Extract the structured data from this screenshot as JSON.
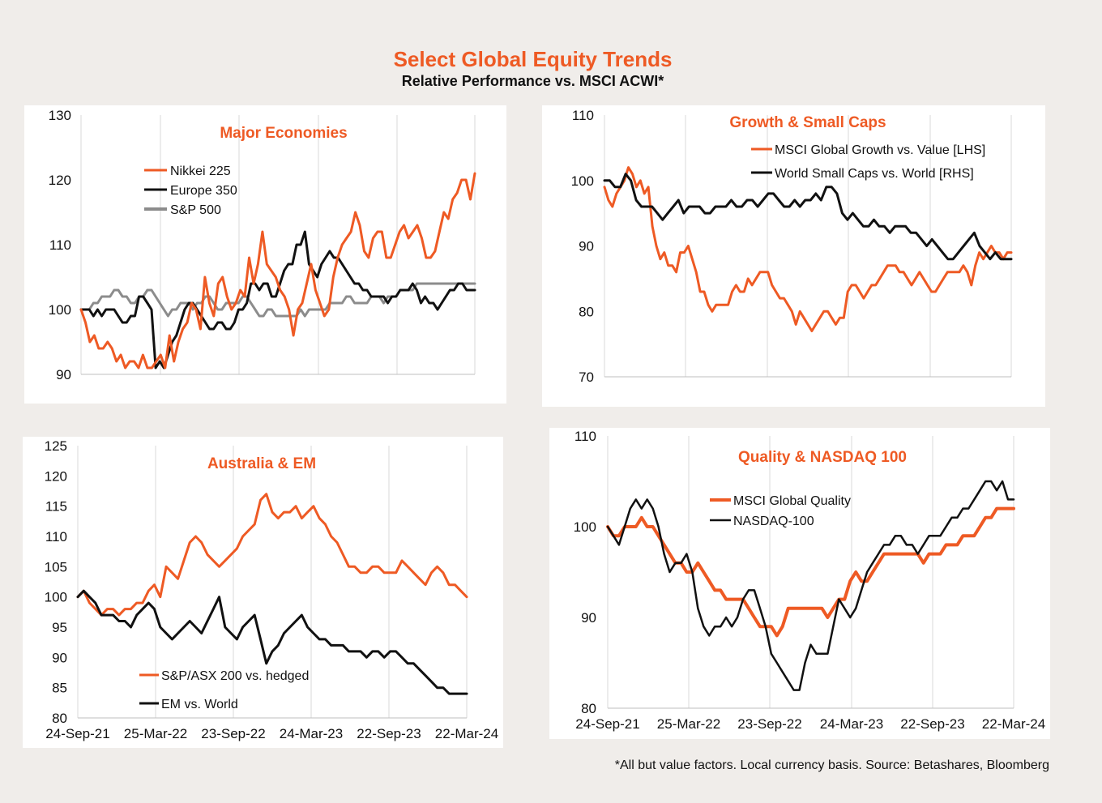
{
  "header": {
    "title": "Select Global Equity Trends",
    "subtitle": "Relative Performance vs. MSCI ACWI*"
  },
  "footnote": "*All but value factors. Local currency basis.  Source: Betashares, Bloomberg",
  "colors": {
    "orange": "#ee5a24",
    "black": "#111111",
    "grey": "#8c8c8c"
  },
  "chart_data": [
    {
      "type": "line",
      "title": "Major Economies",
      "ylim": [
        90,
        130
      ],
      "yticks": [
        "90",
        "100",
        "110",
        "120",
        "130"
      ],
      "xlabel": "",
      "ylabel": "",
      "grid": true,
      "legend": "top-left",
      "series": [
        {
          "name": "Nikkei 225",
          "color": "#ee5a24",
          "width": 3,
          "values": [
            100,
            98,
            95,
            96,
            94,
            94,
            95,
            94,
            92,
            93,
            91,
            92,
            92,
            91,
            93,
            91,
            91,
            92,
            93,
            91,
            96,
            92,
            95,
            97,
            98,
            101,
            100,
            97,
            105,
            101,
            99,
            104,
            105,
            102,
            100,
            101,
            103,
            102,
            108,
            104,
            107,
            112,
            107,
            106,
            105,
            103,
            102,
            100,
            96,
            100,
            101,
            104,
            107,
            103,
            101,
            99,
            100,
            105,
            108,
            110,
            111,
            112,
            115,
            113,
            109,
            108,
            111,
            112,
            112,
            108,
            108,
            110,
            112,
            113,
            111,
            112,
            113,
            111,
            108,
            108,
            109,
            112,
            115,
            114,
            117,
            118,
            120,
            120,
            117,
            121
          ]
        },
        {
          "name": "Europe 350",
          "color": "#111111",
          "width": 3,
          "values": [
            100,
            100,
            100,
            99,
            100,
            99,
            100,
            100,
            100,
            99,
            98,
            98,
            99,
            99,
            102,
            102,
            101,
            100,
            91,
            92,
            91,
            93,
            95,
            96,
            98,
            100,
            101,
            101,
            100,
            99,
            98,
            97,
            97,
            98,
            98,
            97,
            97,
            98,
            100,
            100,
            101,
            104,
            104,
            103,
            104,
            104,
            102,
            102,
            104,
            106,
            107,
            107,
            110,
            110,
            112,
            107,
            106,
            105,
            107,
            108,
            109,
            108,
            108,
            107,
            106,
            105,
            104,
            104,
            103,
            103,
            102,
            102,
            102,
            102,
            101,
            102,
            102,
            103,
            103,
            103,
            104,
            103,
            101,
            102,
            101,
            101,
            100,
            101,
            102,
            103,
            103,
            104,
            104,
            103,
            103,
            103
          ]
        },
        {
          "name": "S&P 500",
          "color": "#8c8c8c",
          "width": 3,
          "values": [
            100,
            100,
            100,
            101,
            101,
            102,
            102,
            102,
            103,
            103,
            102,
            102,
            101,
            101,
            102,
            102,
            103,
            103,
            102,
            101,
            100,
            99,
            100,
            100,
            101,
            101,
            101,
            100,
            101,
            101,
            102,
            102,
            101,
            100,
            100,
            101,
            101,
            101,
            101,
            102,
            102,
            101,
            100,
            99,
            99,
            100,
            100,
            99,
            99,
            99,
            99,
            99,
            99,
            100,
            99,
            100,
            100,
            100,
            100,
            100,
            101,
            101,
            101,
            101,
            102,
            102,
            101,
            101,
            101,
            101,
            102,
            102,
            102,
            101,
            102,
            102,
            102,
            103,
            103,
            103,
            103,
            104,
            104,
            104,
            104,
            104,
            104,
            104,
            104,
            104,
            104,
            104,
            104,
            104,
            104,
            104
          ]
        }
      ]
    },
    {
      "type": "line",
      "title": "Growth & Small Caps",
      "ylim": [
        70,
        110
      ],
      "yticks": [
        "70",
        "80",
        "90",
        "100",
        "110"
      ],
      "xlabel": "",
      "ylabel": "",
      "grid": true,
      "legend": "top-right",
      "series": [
        {
          "name": "MSCI Global Growth vs. Value [LHS]",
          "color": "#ee5a24",
          "width": 3,
          "values": [
            99,
            97,
            96,
            98,
            99,
            100,
            102,
            101,
            99,
            100,
            98,
            99,
            93,
            90,
            88,
            89,
            87,
            87,
            86,
            89,
            89,
            90,
            88,
            86,
            83,
            83,
            81,
            80,
            81,
            81,
            81,
            81,
            83,
            84,
            83,
            83,
            85,
            84,
            85,
            86,
            86,
            86,
            84,
            83,
            82,
            82,
            81,
            80,
            78,
            80,
            79,
            78,
            77,
            78,
            79,
            80,
            80,
            79,
            78,
            79,
            79,
            83,
            84,
            84,
            83,
            82,
            83,
            84,
            84,
            85,
            86,
            87,
            87,
            87,
            86,
            86,
            85,
            84,
            85,
            86,
            85,
            84,
            83,
            83,
            84,
            85,
            86,
            86,
            86,
            86,
            87,
            86,
            84,
            87,
            89,
            88,
            89,
            90,
            89,
            89,
            88,
            89,
            89
          ]
        },
        {
          "name": "World Small Caps vs. World [RHS]",
          "color": "#111111",
          "width": 3,
          "values": [
            100,
            100,
            99,
            99,
            101,
            100,
            97,
            96,
            96,
            96,
            95,
            94,
            95,
            96,
            97,
            95,
            96,
            96,
            96,
            95,
            95,
            96,
            96,
            96,
            97,
            96,
            96,
            97,
            97,
            96,
            97,
            98,
            98,
            97,
            96,
            96,
            97,
            96,
            97,
            97,
            98,
            97,
            99,
            99,
            98,
            95,
            94,
            95,
            94,
            93,
            93,
            94,
            93,
            93,
            92,
            93,
            93,
            93,
            92,
            92,
            91,
            90,
            91,
            90,
            89,
            88,
            88,
            89,
            90,
            91,
            92,
            90,
            89,
            88,
            89,
            88,
            88,
            88
          ]
        }
      ]
    },
    {
      "type": "line",
      "title": "Australia & EM",
      "ylim": [
        80,
        125
      ],
      "yticks": [
        "80",
        "85",
        "90",
        "95",
        "100",
        "105",
        "110",
        "115",
        "120",
        "125"
      ],
      "xlabel": "",
      "ylabel": "",
      "grid": true,
      "legend": "bottom-left",
      "series": [
        {
          "name": "S&P/ASX 200 vs. hedged",
          "color": "#ee5a24",
          "width": 3,
          "values": [
            100,
            101,
            99,
            98,
            97,
            98,
            98,
            97,
            98,
            98,
            99,
            99,
            101,
            102,
            100,
            105,
            104,
            103,
            106,
            109,
            110,
            109,
            107,
            106,
            105,
            106,
            107,
            108,
            110,
            111,
            112,
            116,
            117,
            114,
            113,
            114,
            114,
            115,
            113,
            114,
            115,
            113,
            112,
            110,
            109,
            107,
            105,
            105,
            104,
            104,
            105,
            105,
            104,
            104,
            104,
            106,
            105,
            104,
            103,
            102,
            104,
            105,
            104,
            102,
            102,
            101,
            100
          ]
        },
        {
          "name": "EM vs. World",
          "color": "#111111",
          "width": 3,
          "values": [
            100,
            101,
            100,
            99,
            97,
            97,
            97,
            96,
            96,
            95,
            97,
            98,
            99,
            98,
            95,
            94,
            93,
            94,
            95,
            96,
            95,
            94,
            96,
            98,
            100,
            95,
            94,
            93,
            95,
            96,
            97,
            93,
            89,
            91,
            92,
            94,
            95,
            96,
            97,
            95,
            94,
            93,
            93,
            92,
            92,
            92,
            91,
            91,
            91,
            90,
            91,
            91,
            90,
            91,
            91,
            90,
            89,
            89,
            88,
            87,
            86,
            85,
            85,
            84,
            84,
            84,
            84
          ]
        }
      ]
    },
    {
      "type": "line",
      "title": "Quality & NASDAQ 100",
      "ylim": [
        80,
        110
      ],
      "yticks": [
        "80",
        "90",
        "100",
        "110"
      ],
      "xlabel": "",
      "ylabel": "",
      "grid": true,
      "legend": "top-left",
      "series": [
        {
          "name": "MSCI Global Quality",
          "color": "#ee5a24",
          "width": 4,
          "values": [
            100,
            99,
            99,
            100,
            100,
            100,
            101,
            100,
            100,
            99,
            98,
            97,
            96,
            96,
            95,
            95,
            96,
            95,
            94,
            93,
            93,
            92,
            92,
            92,
            92,
            91,
            90,
            89,
            89,
            89,
            88,
            89,
            91,
            91,
            91,
            91,
            91,
            91,
            91,
            90,
            91,
            92,
            92,
            94,
            95,
            94,
            94,
            95,
            96,
            97,
            97,
            97,
            97,
            97,
            97,
            97,
            96,
            97,
            97,
            97,
            98,
            98,
            98,
            99,
            99,
            99,
            100,
            101,
            101,
            102,
            102,
            102,
            102
          ]
        },
        {
          "name": "NASDAQ-100",
          "color": "#111111",
          "width": 2.5,
          "values": [
            100,
            99,
            98,
            100,
            102,
            103,
            102,
            103,
            102,
            100,
            97,
            95,
            96,
            96,
            97,
            95,
            91,
            89,
            88,
            89,
            89,
            90,
            89,
            90,
            92,
            93,
            93,
            91,
            89,
            86,
            85,
            84,
            83,
            82,
            82,
            85,
            87,
            86,
            86,
            86,
            89,
            92,
            91,
            90,
            91,
            93,
            95,
            96,
            97,
            98,
            98,
            99,
            99,
            98,
            98,
            97,
            98,
            99,
            99,
            99,
            100,
            101,
            101,
            102,
            102,
            103,
            104,
            105,
            105,
            104,
            105,
            103,
            103
          ]
        }
      ]
    }
  ],
  "xticks": {
    "panel1": [
      "24-Sep-21",
      "25-Mar-22",
      "23-Sep-22",
      "24-Mar-23",
      "22-Sep-23",
      "22-Mar-24"
    ],
    "panel3": [
      "24-Sep-21",
      "25-Mar-22",
      "23-Sep-22",
      "24-Mar-23",
      "22-Sep-23",
      "22-Mar-24"
    ],
    "panel4": [
      "24-Sep-21",
      "25-Mar-22",
      "23-Sep-22",
      "24-Mar-23",
      "22-Sep-23",
      "22-Mar-24"
    ]
  }
}
